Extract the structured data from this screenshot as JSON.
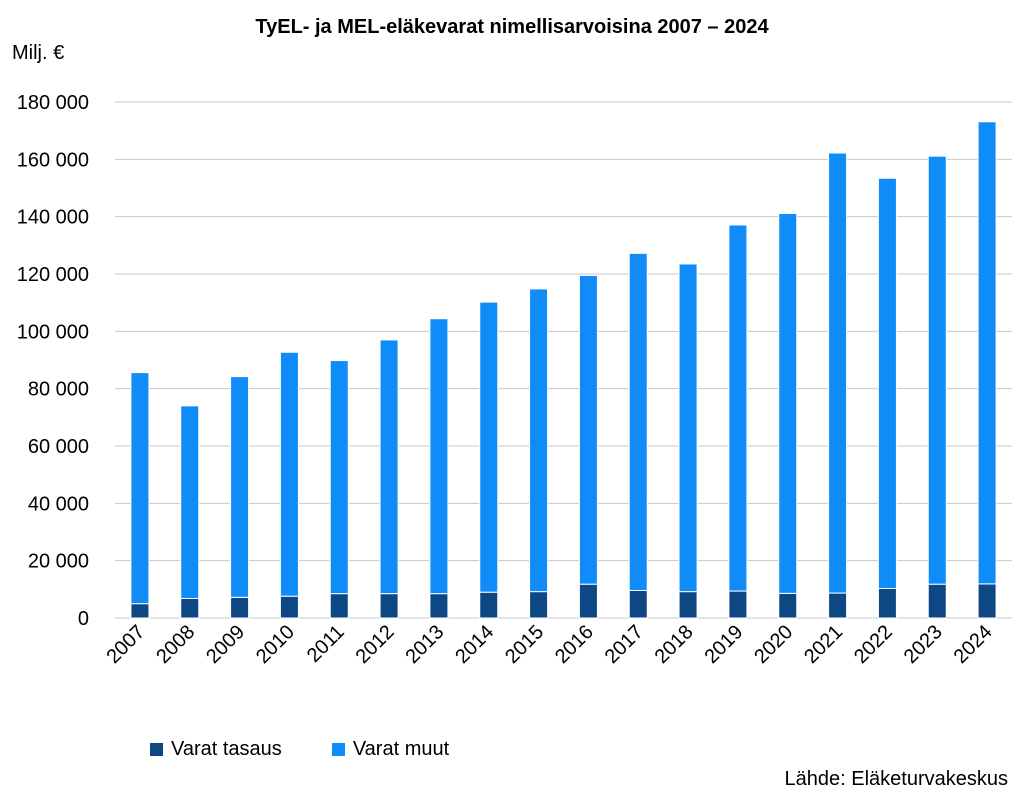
{
  "chart_data": {
    "type": "bar",
    "stacked": true,
    "title": "TyEL- ja MEL-eläkevarat nimellisarvoisina 2007 – 2024",
    "ylabel": "Milj. €",
    "xlabel": "",
    "ylim": [
      0,
      180000
    ],
    "yticks": [
      0,
      20000,
      40000,
      60000,
      80000,
      100000,
      120000,
      140000,
      160000,
      180000
    ],
    "ytick_labels": [
      "0",
      "20 000",
      "40 000",
      "60 000",
      "80 000",
      "100 000",
      "120 000",
      "140 000",
      "160 000",
      "180 000"
    ],
    "grid": "horizontal",
    "legend_position": "bottom-left",
    "categories": [
      "2007",
      "2008",
      "2009",
      "2010",
      "2011",
      "2012",
      "2013",
      "2014",
      "2015",
      "2016",
      "2017",
      "2018",
      "2019",
      "2020",
      "2021",
      "2022",
      "2023",
      "2024"
    ],
    "series": [
      {
        "name": "Varat tasaus",
        "color": "#0d4784",
        "values": [
          5000,
          6800,
          7200,
          7600,
          8500,
          8500,
          8500,
          9000,
          9200,
          11800,
          9600,
          9200,
          9400,
          8600,
          8700,
          10300,
          11800,
          11900
        ]
      },
      {
        "name": "Varat muut",
        "color": "#0f8cf8",
        "values": [
          80600,
          67200,
          77000,
          85100,
          81300,
          88500,
          95900,
          101200,
          105600,
          107700,
          117600,
          114300,
          127700,
          132500,
          153500,
          143100,
          149300,
          161200
        ]
      }
    ]
  },
  "source": "Lähde: Eläketurvakeskus",
  "colors": {
    "gridline": "#c8c8c8",
    "separator": "#ffffff"
  }
}
